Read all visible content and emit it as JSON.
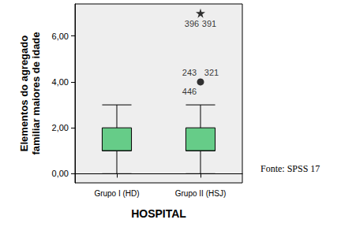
{
  "chart_data": {
    "type": "boxplot",
    "xlabel": "HOSPITAL",
    "ylabel": "Elementos do agregado\nfamiliar maiores de idade",
    "source": "Fonte: SPSS 17",
    "categories": [
      "Grupo I (HD)",
      "Grupo II (HSJ)"
    ],
    "boxes": [
      [
        0,
        1,
        1,
        2,
        3
      ],
      [
        0,
        1,
        1,
        2,
        3
      ]
    ],
    "outliers": [
      {
        "category": "Grupo II (HSJ)",
        "value": 4,
        "labels": [
          "243",
          "321",
          "446"
        ],
        "marker": "circle"
      },
      {
        "category": "Grupo II (HSJ)",
        "value": 7,
        "labels": [
          "396",
          "391"
        ],
        "marker": "star"
      }
    ],
    "color": "#66cc88",
    "ylim": [
      -0.4,
      7.4
    ],
    "yticks": [
      {
        "value": 0,
        "label": "0,00"
      },
      {
        "value": 2,
        "label": "2,00"
      },
      {
        "value": 4,
        "label": "4,00"
      },
      {
        "value": 6,
        "label": "6,00"
      }
    ],
    "grid": false
  }
}
